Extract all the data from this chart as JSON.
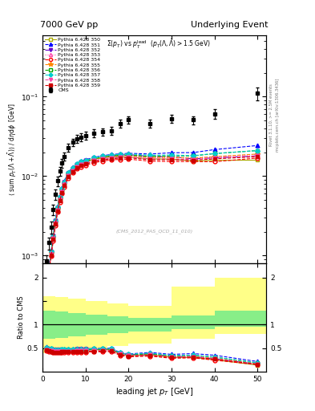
{
  "title_left": "7000 GeV pp",
  "title_right": "Underlying Event",
  "plot_title": "#Sigma(p_{T}) vs p_{T}^{lead} (p_{T}(#Lambda,#bar{#Lambda}) > 1.5 GeV)",
  "ylabel_main": "< sum p_T(#Lambda + bar#Lambda) > / d#etad#phi  [GeV]",
  "ylabel_ratio": "Ratio to CMS",
  "xlabel": "leading jet p_{T} [GeV]",
  "watermark": "(CMS_2012_PAS_QCD_11_010)",
  "right_label_top": "Rivet 3.1.10, >= 2.5M events",
  "right_label_bot": "mcplots.cern.ch [arXiv:1306.3436]",
  "cms_x": [
    1.0,
    1.5,
    2.0,
    2.5,
    3.0,
    3.5,
    4.0,
    4.5,
    5.0,
    6.0,
    7.0,
    8.0,
    9.0,
    10.0,
    12.0,
    14.0,
    16.0,
    18.0,
    20.0,
    25.0,
    30.0,
    35.0,
    40.0,
    50.0
  ],
  "cms_y": [
    0.00085,
    0.00145,
    0.0023,
    0.0038,
    0.0059,
    0.0087,
    0.0116,
    0.0146,
    0.0178,
    0.023,
    0.0268,
    0.0295,
    0.0312,
    0.0326,
    0.0348,
    0.0362,
    0.0374,
    0.046,
    0.051,
    0.046,
    0.053,
    0.051,
    0.061,
    0.11
  ],
  "cms_yerr": [
    0.00015,
    0.00025,
    0.0004,
    0.0006,
    0.0009,
    0.0012,
    0.0015,
    0.0018,
    0.0021,
    0.0026,
    0.003,
    0.0033,
    0.0035,
    0.0037,
    0.0039,
    0.0041,
    0.0043,
    0.0051,
    0.0056,
    0.0051,
    0.0061,
    0.0061,
    0.0081,
    0.02
  ],
  "pythia_x": [
    1.0,
    1.5,
    2.0,
    2.5,
    3.0,
    3.5,
    4.0,
    4.5,
    5.0,
    6.0,
    7.0,
    8.0,
    9.0,
    10.0,
    12.0,
    14.0,
    16.0,
    18.0,
    20.0,
    25.0,
    30.0,
    35.0,
    40.0,
    50.0
  ],
  "series": [
    {
      "label": "Pythia 6.428 350",
      "color": "#aaaa00",
      "marker": "s",
      "marker_face": "white",
      "linestyle": "-",
      "y": [
        0.00042,
        0.00068,
        0.00108,
        0.0017,
        0.00265,
        0.0039,
        0.0052,
        0.0066,
        0.0081,
        0.0105,
        0.0123,
        0.0137,
        0.0146,
        0.0152,
        0.0163,
        0.017,
        0.0176,
        0.0175,
        0.0175,
        0.0165,
        0.0164,
        0.0155,
        0.0158,
        0.0159
      ]
    },
    {
      "label": "Pythia 6.428 351",
      "color": "#0000ff",
      "marker": "^",
      "marker_face": "#0000ff",
      "linestyle": "--",
      "y": [
        0.00045,
        0.00072,
        0.00115,
        0.00182,
        0.00283,
        0.00416,
        0.00556,
        0.00705,
        0.00863,
        0.01118,
        0.01303,
        0.01446,
        0.0154,
        0.01608,
        0.01726,
        0.01808,
        0.01878,
        0.01905,
        0.0194,
        0.019,
        0.0197,
        0.0198,
        0.0216,
        0.0243
      ]
    },
    {
      "label": "Pythia 6.428 352",
      "color": "#6600cc",
      "marker": "v",
      "marker_face": "#6600cc",
      "linestyle": "-.",
      "y": [
        0.00043,
        0.0007,
        0.00111,
        0.00175,
        0.00272,
        0.00401,
        0.00535,
        0.00679,
        0.00831,
        0.01077,
        0.01257,
        0.01396,
        0.01488,
        0.01554,
        0.0167,
        0.0175,
        0.01817,
        0.01843,
        0.01865,
        0.0177,
        0.0175,
        0.0165,
        0.017,
        0.018
      ]
    },
    {
      "label": "Pythia 6.428 353",
      "color": "#ff44aa",
      "marker": "^",
      "marker_face": "white",
      "linestyle": ":",
      "y": [
        0.00041,
        0.00067,
        0.00106,
        0.00167,
        0.0026,
        0.00382,
        0.0051,
        0.00647,
        0.00792,
        0.01027,
        0.01198,
        0.01332,
        0.0142,
        0.01484,
        0.01594,
        0.01668,
        0.01733,
        0.01757,
        0.01775,
        0.0171,
        0.0173,
        0.017,
        0.0176,
        0.0188
      ]
    },
    {
      "label": "Pythia 6.428 354",
      "color": "#ff0000",
      "marker": "o",
      "marker_face": "white",
      "linestyle": "--",
      "y": [
        0.00038,
        0.00062,
        0.00098,
        0.00155,
        0.00241,
        0.00354,
        0.00473,
        0.006,
        0.00734,
        0.00952,
        0.0111,
        0.01234,
        0.01316,
        0.01375,
        0.01478,
        0.01547,
        0.01606,
        0.01624,
        0.01638,
        0.01544,
        0.0153,
        0.0152,
        0.0152,
        0.0169
      ]
    },
    {
      "label": "Pythia 6.428 355",
      "color": "#ff8800",
      "marker": "*",
      "marker_face": "#ff8800",
      "linestyle": "--",
      "y": [
        0.00042,
        0.00068,
        0.00108,
        0.0017,
        0.00265,
        0.0039,
        0.00521,
        0.00661,
        0.0081,
        0.0105,
        0.01226,
        0.01363,
        0.01452,
        0.01518,
        0.01633,
        0.01712,
        0.01777,
        0.018,
        0.0182,
        0.0172,
        0.0172,
        0.0168,
        0.0176,
        0.019
      ]
    },
    {
      "label": "Pythia 6.428 356",
      "color": "#00aa00",
      "marker": "s",
      "marker_face": "white",
      "linestyle": "--",
      "y": [
        0.00043,
        0.00069,
        0.0011,
        0.00173,
        0.00269,
        0.00396,
        0.00529,
        0.00671,
        0.00822,
        0.01065,
        0.01243,
        0.01382,
        0.01473,
        0.01539,
        0.01655,
        0.01733,
        0.01799,
        0.01825,
        0.01847,
        0.0177,
        0.018,
        0.018,
        0.0192,
        0.021
      ]
    },
    {
      "label": "Pythia 6.428 357",
      "color": "#00cccc",
      "marker": "D",
      "marker_face": "#00cccc",
      "linestyle": "--",
      "y": [
        0.00044,
        0.00071,
        0.00113,
        0.00178,
        0.00277,
        0.00408,
        0.00545,
        0.00691,
        0.00847,
        0.01098,
        0.01281,
        0.01424,
        0.01518,
        0.01587,
        0.01706,
        0.01789,
        0.01857,
        0.01885,
        0.0191,
        0.0183,
        0.0185,
        0.0181,
        0.0193,
        0.021
      ]
    },
    {
      "label": "Pythia 6.428 358",
      "color": "#ff44aa",
      "marker": "v",
      "marker_face": "#ff44aa",
      "linestyle": "--",
      "y": [
        0.0004,
        0.00065,
        0.00103,
        0.00163,
        0.00253,
        0.00372,
        0.00497,
        0.00631,
        0.00773,
        0.01001,
        0.01168,
        0.01299,
        0.01385,
        0.01447,
        0.01556,
        0.01631,
        0.01694,
        0.01718,
        0.01737,
        0.0165,
        0.0165,
        0.0162,
        0.017,
        0.018
      ]
    },
    {
      "label": "Pythia 6.428 359",
      "color": "#cc0000",
      "marker": "s",
      "marker_face": "#cc0000",
      "linestyle": "--",
      "y": [
        0.00039,
        0.00064,
        0.00101,
        0.0016,
        0.00248,
        0.00365,
        0.00487,
        0.00618,
        0.00757,
        0.00981,
        0.01145,
        0.01273,
        0.01357,
        0.01419,
        0.01526,
        0.01599,
        0.01661,
        0.01685,
        0.01703,
        0.0161,
        0.0161,
        0.0158,
        0.0165,
        0.0176
      ]
    }
  ],
  "band_x_edges": [
    0.0,
    3.0,
    6.0,
    10.0,
    15.0,
    20.0,
    30.0,
    40.0,
    52.0
  ],
  "yellow_low": [
    0.4,
    0.42,
    0.45,
    0.5,
    0.55,
    0.6,
    0.7,
    0.8
  ],
  "yellow_high": [
    1.6,
    1.58,
    1.55,
    1.5,
    1.45,
    1.4,
    1.8,
    2.0
  ],
  "green_low": [
    0.7,
    0.72,
    0.75,
    0.78,
    0.82,
    0.85,
    0.9,
    0.95
  ],
  "green_high": [
    1.3,
    1.28,
    1.25,
    1.22,
    1.18,
    1.15,
    1.2,
    1.3
  ],
  "ylim_main": [
    0.0008,
    0.6
  ],
  "ylim_ratio": [
    0.0,
    2.3
  ],
  "xlim": [
    0,
    52
  ]
}
